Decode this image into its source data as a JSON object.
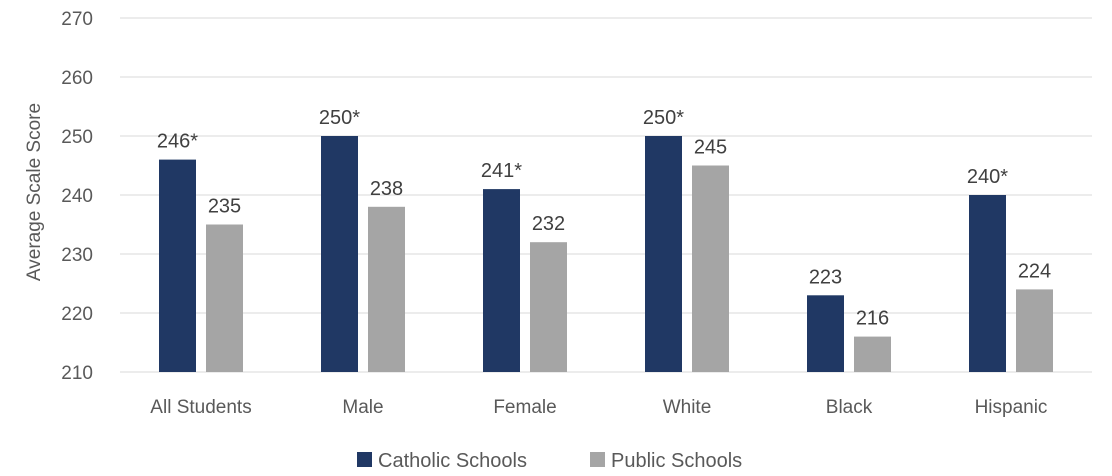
{
  "chart_data": {
    "type": "bar",
    "title": "",
    "xlabel": "",
    "ylabel": "Average Scale Score",
    "ylim": [
      210,
      270
    ],
    "yticks": [
      210,
      220,
      230,
      240,
      250,
      260,
      270
    ],
    "grid": true,
    "legend_position": "bottom",
    "categories": [
      "All Students",
      "Male",
      "Female",
      "White",
      "Black",
      "Hispanic"
    ],
    "series": [
      {
        "name": "Catholic Schools",
        "color": "#203864",
        "values": [
          246,
          250,
          241,
          250,
          223,
          240
        ],
        "labels": [
          "246*",
          "250*",
          "241*",
          "250*",
          "223",
          "240*"
        ]
      },
      {
        "name": "Public Schools",
        "color": "#a5a5a5",
        "values": [
          235,
          238,
          232,
          245,
          216,
          224
        ],
        "labels": [
          "235",
          "238",
          "232",
          "245",
          "216",
          "224"
        ]
      }
    ]
  }
}
